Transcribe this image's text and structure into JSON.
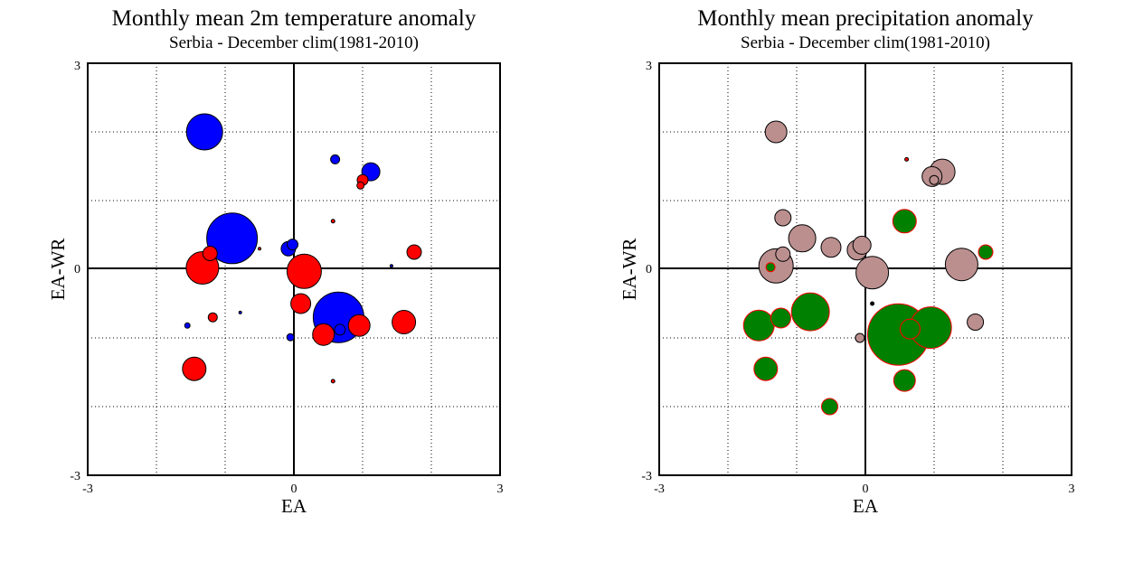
{
  "chart_data": [
    {
      "type": "scatter",
      "title": "Monthly mean 2m temperature anomaly",
      "subtitle": "Serbia - December  clim(1981-2010)",
      "xlabel": "EA",
      "ylabel": "EA-WR",
      "xlim": [
        -3,
        3
      ],
      "ylim": [
        -3,
        3
      ],
      "tick_labels": {
        "xmin": "-3",
        "xmid": "0",
        "xmax": "3",
        "ymin": "-3",
        "ymid": "0",
        "ymax": "3"
      },
      "grid": true,
      "grid_step": 1,
      "colors": {
        "positive": "#ff0000",
        "negative": "#0000ff",
        "outline": "#000000"
      },
      "points": [
        {
          "x": -1.3,
          "y": 2.0,
          "size": 20,
          "color": "#0000ff"
        },
        {
          "x": -0.9,
          "y": 0.45,
          "size": 28,
          "color": "#0000ff"
        },
        {
          "x": 0.6,
          "y": 1.6,
          "size": 5,
          "color": "#0000ff"
        },
        {
          "x": 1.12,
          "y": 1.42,
          "size": 10,
          "color": "#0000ff"
        },
        {
          "x": 0.97,
          "y": 1.22,
          "size": 4,
          "color": "#ff0000"
        },
        {
          "x": 1.0,
          "y": 1.3,
          "size": 6,
          "color": "#ff0000"
        },
        {
          "x": 0.57,
          "y": 0.7,
          "size": 2,
          "color": "#ff0000"
        },
        {
          "x": -0.02,
          "y": 0.36,
          "size": 6,
          "color": "#0000ff"
        },
        {
          "x": -0.08,
          "y": 0.3,
          "size": 8,
          "color": "#0000ff"
        },
        {
          "x": -1.22,
          "y": 0.23,
          "size": 8,
          "color": "#ff0000"
        },
        {
          "x": -0.5,
          "y": 0.3,
          "size": 1,
          "color": "#ff0000"
        },
        {
          "x": 1.75,
          "y": 0.25,
          "size": 8,
          "color": "#ff0000"
        },
        {
          "x": -1.33,
          "y": 0.02,
          "size": 18,
          "color": "#ff0000"
        },
        {
          "x": 0.15,
          "y": -0.03,
          "size": 19,
          "color": "#ff0000"
        },
        {
          "x": 1.42,
          "y": 0.05,
          "size": 1,
          "color": "#0000ff"
        },
        {
          "x": 0.1,
          "y": -0.5,
          "size": 11,
          "color": "#ff0000"
        },
        {
          "x": 0.65,
          "y": -0.7,
          "size": 28,
          "color": "#0000ff"
        },
        {
          "x": -0.78,
          "y": -0.63,
          "size": 1,
          "color": "#0000ff"
        },
        {
          "x": -1.18,
          "y": -0.7,
          "size": 5,
          "color": "#ff0000"
        },
        {
          "x": -1.55,
          "y": -0.82,
          "size": 3,
          "color": "#0000ff"
        },
        {
          "x": 0.95,
          "y": -0.82,
          "size": 12,
          "color": "#ff0000"
        },
        {
          "x": 0.67,
          "y": -0.88,
          "size": 6,
          "color": "#0000ff"
        },
        {
          "x": 1.6,
          "y": -0.77,
          "size": 13,
          "color": "#ff0000"
        },
        {
          "x": 0.43,
          "y": -0.95,
          "size": 12,
          "color": "#ff0000"
        },
        {
          "x": -0.05,
          "y": -0.99,
          "size": 4,
          "color": "#0000ff"
        },
        {
          "x": -1.45,
          "y": -1.45,
          "size": 13,
          "color": "#ff0000"
        },
        {
          "x": 0.57,
          "y": -1.63,
          "size": 2,
          "color": "#ff0000"
        }
      ]
    },
    {
      "type": "scatter",
      "title": "Monthly mean precipitation anomaly",
      "subtitle": "Serbia - December  clim(1981-2010)",
      "xlabel": "EA",
      "ylabel": "EA-WR",
      "xlim": [
        -3,
        3
      ],
      "ylim": [
        -3,
        3
      ],
      "tick_labels": {
        "xmin": "-3",
        "xmid": "0",
        "xmax": "3",
        "ymin": "-3",
        "ymid": "0",
        "ymax": "3"
      },
      "grid": true,
      "grid_step": 1,
      "colors": {
        "wet": "#008000",
        "dry": "#bc8f8f",
        "wet_outline": "#ff0000",
        "dry_outline": "#000000"
      },
      "points": [
        {
          "x": -1.3,
          "y": 2.0,
          "size": 12,
          "color": "#bc8f8f"
        },
        {
          "x": 0.6,
          "y": 1.6,
          "size": 2,
          "color": "#ff0000"
        },
        {
          "x": 1.12,
          "y": 1.42,
          "size": 14,
          "color": "#bc8f8f"
        },
        {
          "x": 0.97,
          "y": 1.35,
          "size": 11,
          "color": "#bc8f8f"
        },
        {
          "x": 1.0,
          "y": 1.3,
          "size": 5,
          "color": "#bc8f8f"
        },
        {
          "x": -1.2,
          "y": 0.75,
          "size": 9,
          "color": "#bc8f8f"
        },
        {
          "x": 0.57,
          "y": 0.7,
          "size": 13,
          "color": "#008000"
        },
        {
          "x": -0.92,
          "y": 0.45,
          "size": 15,
          "color": "#bc8f8f"
        },
        {
          "x": -0.5,
          "y": 0.32,
          "size": 11,
          "color": "#bc8f8f"
        },
        {
          "x": -0.05,
          "y": 0.35,
          "size": 10,
          "color": "#bc8f8f"
        },
        {
          "x": -0.12,
          "y": 0.28,
          "size": 11,
          "color": "#bc8f8f"
        },
        {
          "x": -1.2,
          "y": 0.22,
          "size": 8,
          "color": "#bc8f8f"
        },
        {
          "x": 1.75,
          "y": 0.25,
          "size": 8,
          "color": "#008000"
        },
        {
          "x": -1.3,
          "y": 0.05,
          "size": 19,
          "color": "#bc8f8f"
        },
        {
          "x": -1.38,
          "y": 0.03,
          "size": 5,
          "color": "#008000"
        },
        {
          "x": 0.1,
          "y": -0.05,
          "size": 18,
          "color": "#bc8f8f"
        },
        {
          "x": 1.4,
          "y": 0.07,
          "size": 18,
          "color": "#bc8f8f"
        },
        {
          "x": 0.1,
          "y": -0.5,
          "size": 2,
          "color": "#000000"
        },
        {
          "x": -0.8,
          "y": -0.62,
          "size": 21,
          "color": "#008000"
        },
        {
          "x": -1.23,
          "y": -0.71,
          "size": 11,
          "color": "#008000"
        },
        {
          "x": -1.55,
          "y": -0.82,
          "size": 17,
          "color": "#008000"
        },
        {
          "x": 0.48,
          "y": -0.95,
          "size": 34,
          "color": "#008000"
        },
        {
          "x": 0.95,
          "y": -0.85,
          "size": 23,
          "color": "#008000"
        },
        {
          "x": 0.65,
          "y": -0.87,
          "size": 11,
          "color": "#008000"
        },
        {
          "x": 1.6,
          "y": -0.77,
          "size": 9,
          "color": "#bc8f8f"
        },
        {
          "x": -0.08,
          "y": -1.0,
          "size": 5,
          "color": "#bc8f8f"
        },
        {
          "x": -1.45,
          "y": -1.45,
          "size": 13,
          "color": "#008000"
        },
        {
          "x": 0.57,
          "y": -1.62,
          "size": 12,
          "color": "#008000"
        },
        {
          "x": -0.52,
          "y": -2.0,
          "size": 9,
          "color": "#008000"
        }
      ]
    }
  ]
}
